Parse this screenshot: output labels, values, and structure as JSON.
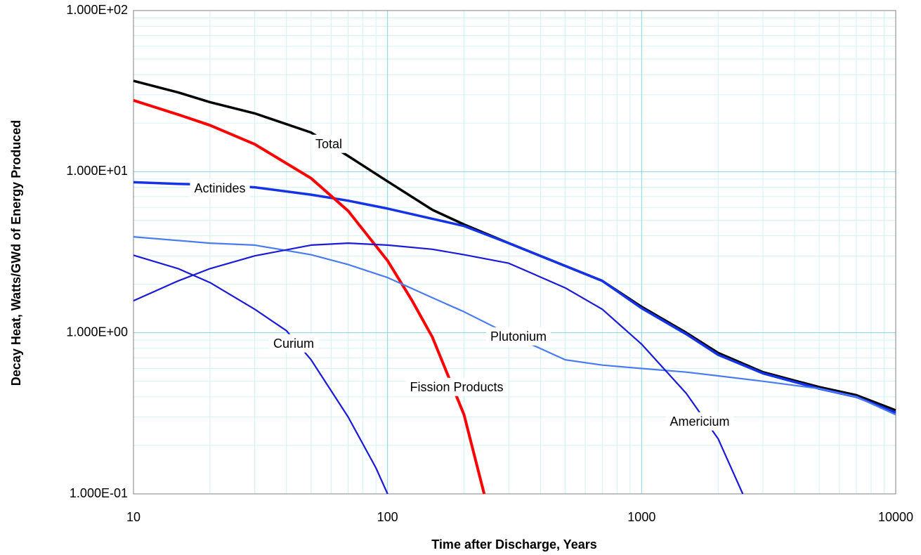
{
  "chart_data": {
    "type": "line",
    "x_label": "Time after Discharge, Years",
    "y_label": "Decay Heat, Watts/GWd of Energy Produced",
    "xscale": "log",
    "yscale": "log",
    "grid": true,
    "xlim": [
      10,
      10000
    ],
    "xticks": [
      10,
      100,
      1000,
      10000
    ],
    "ylim": [
      0.1,
      100
    ],
    "yticks": [
      {
        "value": 0.1,
        "label": "1.000E-01"
      },
      {
        "value": 1,
        "label": "1.000E+00"
      },
      {
        "value": 10,
        "label": "1.000E+01"
      },
      {
        "value": 100,
        "label": "1.000E+02"
      }
    ],
    "series": [
      {
        "name": "Total",
        "color": "#000000",
        "x": [
          10,
          15,
          20,
          30,
          50,
          70,
          100,
          150,
          200,
          300,
          500,
          700,
          1000,
          1500,
          2000,
          3000,
          5000,
          7000,
          10000
        ],
        "values": [
          36.6,
          31,
          27,
          23,
          17.5,
          12.5,
          8.7,
          5.8,
          4.7,
          3.6,
          2.6,
          2.1,
          1.45,
          1.0,
          0.75,
          0.57,
          0.46,
          0.41,
          0.33
        ]
      },
      {
        "name": "Actinides",
        "color": "#1432e6",
        "x": [
          10,
          15,
          20,
          30,
          50,
          70,
          100,
          150,
          200,
          300,
          500,
          700,
          1000,
          1500,
          2000,
          3000,
          5000,
          7000,
          10000
        ],
        "values": [
          8.6,
          8.4,
          8.3,
          8.0,
          7.2,
          6.6,
          5.9,
          5.1,
          4.6,
          3.6,
          2.6,
          2.1,
          1.42,
          0.98,
          0.73,
          0.56,
          0.45,
          0.4,
          0.32
        ]
      },
      {
        "name": "Fission Products",
        "color": "#ff0000",
        "x": [
          10,
          15,
          20,
          30,
          50,
          70,
          100,
          125,
          150,
          200,
          240
        ],
        "values": [
          27.7,
          22.6,
          19.4,
          14.8,
          9.1,
          5.7,
          2.8,
          1.58,
          0.94,
          0.31,
          0.1
        ]
      },
      {
        "name": "Plutonium",
        "color": "#4a7cf0",
        "x": [
          10,
          20,
          30,
          50,
          70,
          100,
          150,
          200,
          300,
          500,
          700,
          1000,
          1500,
          2000,
          3000,
          5000,
          7000,
          10000
        ],
        "values": [
          3.94,
          3.6,
          3.5,
          3.05,
          2.65,
          2.2,
          1.65,
          1.35,
          0.98,
          0.68,
          0.63,
          0.6,
          0.57,
          0.54,
          0.5,
          0.45,
          0.4,
          0.31
        ]
      },
      {
        "name": "Americium",
        "color": "#1a1ad8",
        "x": [
          10,
          15,
          20,
          30,
          50,
          70,
          100,
          150,
          200,
          300,
          500,
          700,
          1000,
          1500,
          2000,
          2500
        ],
        "values": [
          1.58,
          2.1,
          2.5,
          3.0,
          3.5,
          3.6,
          3.5,
          3.3,
          3.05,
          2.7,
          1.9,
          1.4,
          0.85,
          0.42,
          0.22,
          0.1
        ]
      },
      {
        "name": "Curium",
        "color": "#1a1ad8",
        "x": [
          10,
          15,
          20,
          30,
          40,
          50,
          70,
          90,
          100
        ],
        "values": [
          3.03,
          2.5,
          2.05,
          1.4,
          1.03,
          0.68,
          0.3,
          0.145,
          0.1
        ]
      }
    ]
  }
}
